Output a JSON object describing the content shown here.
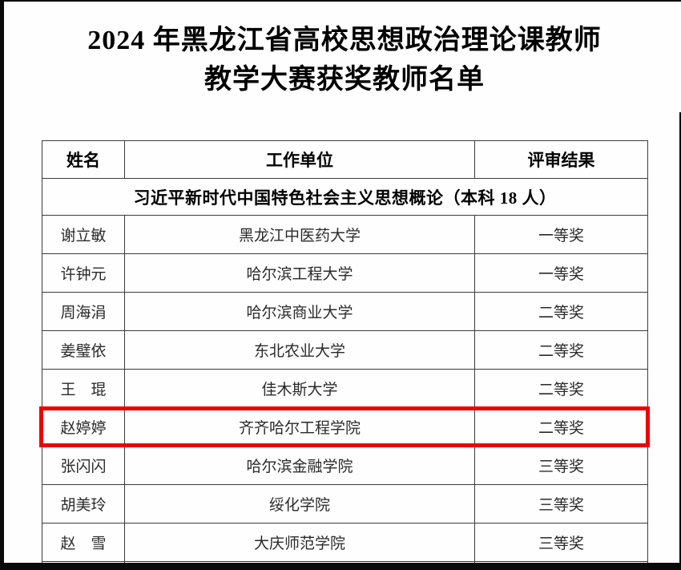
{
  "page": {
    "title_line1": "2024 年黑龙江省高校思想政治理论课教师",
    "title_line2": "教学大赛获奖教师名单"
  },
  "table": {
    "headers": {
      "name": "姓名",
      "unit": "工作单位",
      "result": "评审结果"
    },
    "section_title": "习近平新时代中国特色社会主义思想概论（本科 18 人）",
    "rows": [
      {
        "name": "谢立敏",
        "unit": "黑龙江中医药大学",
        "result": "一等奖",
        "highlighted": false
      },
      {
        "name": "许钟元",
        "unit": "哈尔滨工程大学",
        "result": "一等奖",
        "highlighted": false
      },
      {
        "name": "周海涓",
        "unit": "哈尔滨商业大学",
        "result": "二等奖",
        "highlighted": false
      },
      {
        "name": "姜璧依",
        "unit": "东北农业大学",
        "result": "二等奖",
        "highlighted": false
      },
      {
        "name": "王　琨",
        "unit": "佳木斯大学",
        "result": "二等奖",
        "highlighted": false
      },
      {
        "name": "赵婷婷",
        "unit": "齐齐哈尔工程学院",
        "result": "二等奖",
        "highlighted": true
      },
      {
        "name": "张闪闪",
        "unit": "哈尔滨金融学院",
        "result": "三等奖",
        "highlighted": false
      },
      {
        "name": "胡美玲",
        "unit": "绥化学院",
        "result": "三等奖",
        "highlighted": false
      },
      {
        "name": "赵　雪",
        "unit": "大庆师范学院",
        "result": "三等奖",
        "highlighted": false
      }
    ]
  },
  "annotations": {
    "highlight_color": "#ee0000",
    "highlighted_row_name": "赵婷婷"
  }
}
